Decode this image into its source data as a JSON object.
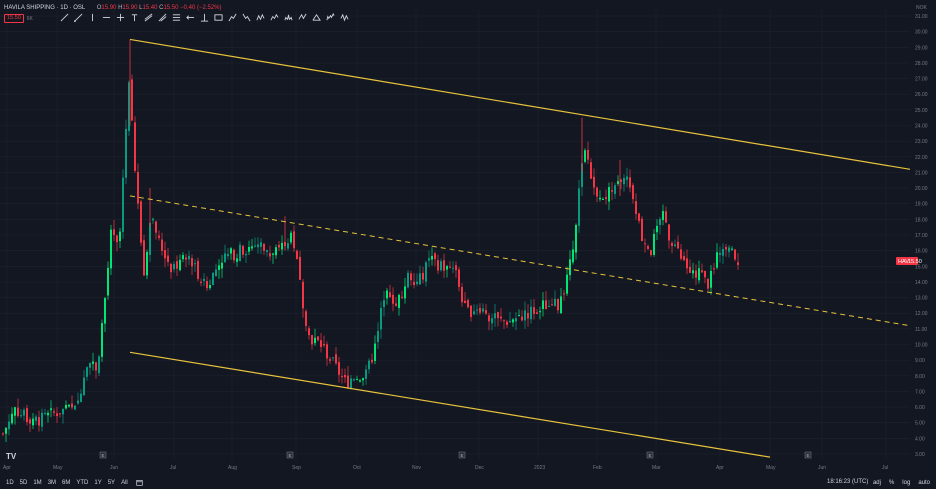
{
  "symbol": "HAVILA SHIPPING · 1D · OSL",
  "ohlc": {
    "o_label": "O",
    "o": "15.90",
    "h_label": "H",
    "h": "15.90",
    "l_label": "L",
    "l": "15.40",
    "c_label": "C",
    "c": "15.50",
    "change": "−0.40 (−2.52%)"
  },
  "current_price_badge": "15.50",
  "badge_extra": "6K",
  "axis_top_label": "NOK",
  "price_axis": {
    "labels": [
      "31.00",
      "30.00",
      "29.00",
      "28.00",
      "27.00",
      "26.00",
      "25.00",
      "24.00",
      "23.00",
      "22.00",
      "21.00",
      "20.00",
      "19.00",
      "18.00",
      "17.00",
      "16.00",
      "15.00",
      "14.00",
      "13.00",
      "12.00",
      "11.00",
      "10.00",
      "9.00",
      "8.00",
      "7.00",
      "6.00",
      "5.00",
      "4.00",
      "3.00"
    ],
    "marker_symbol": "HAV",
    "marker_price": "15.50"
  },
  "time_axis": {
    "labels": [
      "Apr",
      "May",
      "Jun",
      "Jul",
      "Aug",
      "Sep",
      "Oct",
      "Nov",
      "Dec",
      "2023",
      "Feb",
      "Mar",
      "Apr",
      "May",
      "Jun",
      "Jul"
    ],
    "earnings_marker": "E"
  },
  "ranges": [
    "1D",
    "5D",
    "1M",
    "3M",
    "6M",
    "YTD",
    "1Y",
    "5Y",
    "All"
  ],
  "clock": "18:16:23 (UTC)",
  "controls": [
    "adj",
    "%",
    "log",
    "auto"
  ],
  "logo": "TV",
  "chart_data": {
    "type": "candlestick",
    "ylim": [
      3,
      31
    ],
    "x": [
      "Apr",
      "May",
      "Jun",
      "Jul",
      "Aug",
      "Sep",
      "Oct",
      "Nov",
      "Dec",
      "2023",
      "Feb",
      "Mar",
      "Apr"
    ],
    "close": [
      4.5,
      5.3,
      18.0,
      15.0,
      15.8,
      16.5,
      8.0,
      15.5,
      11.5,
      12.8,
      20.5,
      16.0,
      15.5
    ],
    "high": [
      6.5,
      6.0,
      29.5,
      20.0,
      17.5,
      18.2,
      10.0,
      16.5,
      13.0,
      14.5,
      24.5,
      19.0,
      16.8
    ],
    "low": [
      3.9,
      4.8,
      9.0,
      12.5,
      13.0,
      9.5,
      7.0,
      12.0,
      10.8,
      11.0,
      14.5,
      13.5,
      13.5
    ],
    "channel_top": {
      "from": [
        "Jun",
        29.5
      ],
      "to": [
        "Jul",
        21.2
      ]
    },
    "channel_mid": {
      "from": [
        "Jun",
        19.5
      ],
      "to": [
        "Jul",
        11.2
      ]
    },
    "channel_bottom": {
      "from": [
        "Jun",
        9.5
      ],
      "to": [
        "May",
        2.8
      ]
    },
    "colors": {
      "up": "#089981",
      "up_bright": "#00e676",
      "down": "#f23645",
      "channel": "#e8c33c",
      "bg": "#131722"
    }
  }
}
